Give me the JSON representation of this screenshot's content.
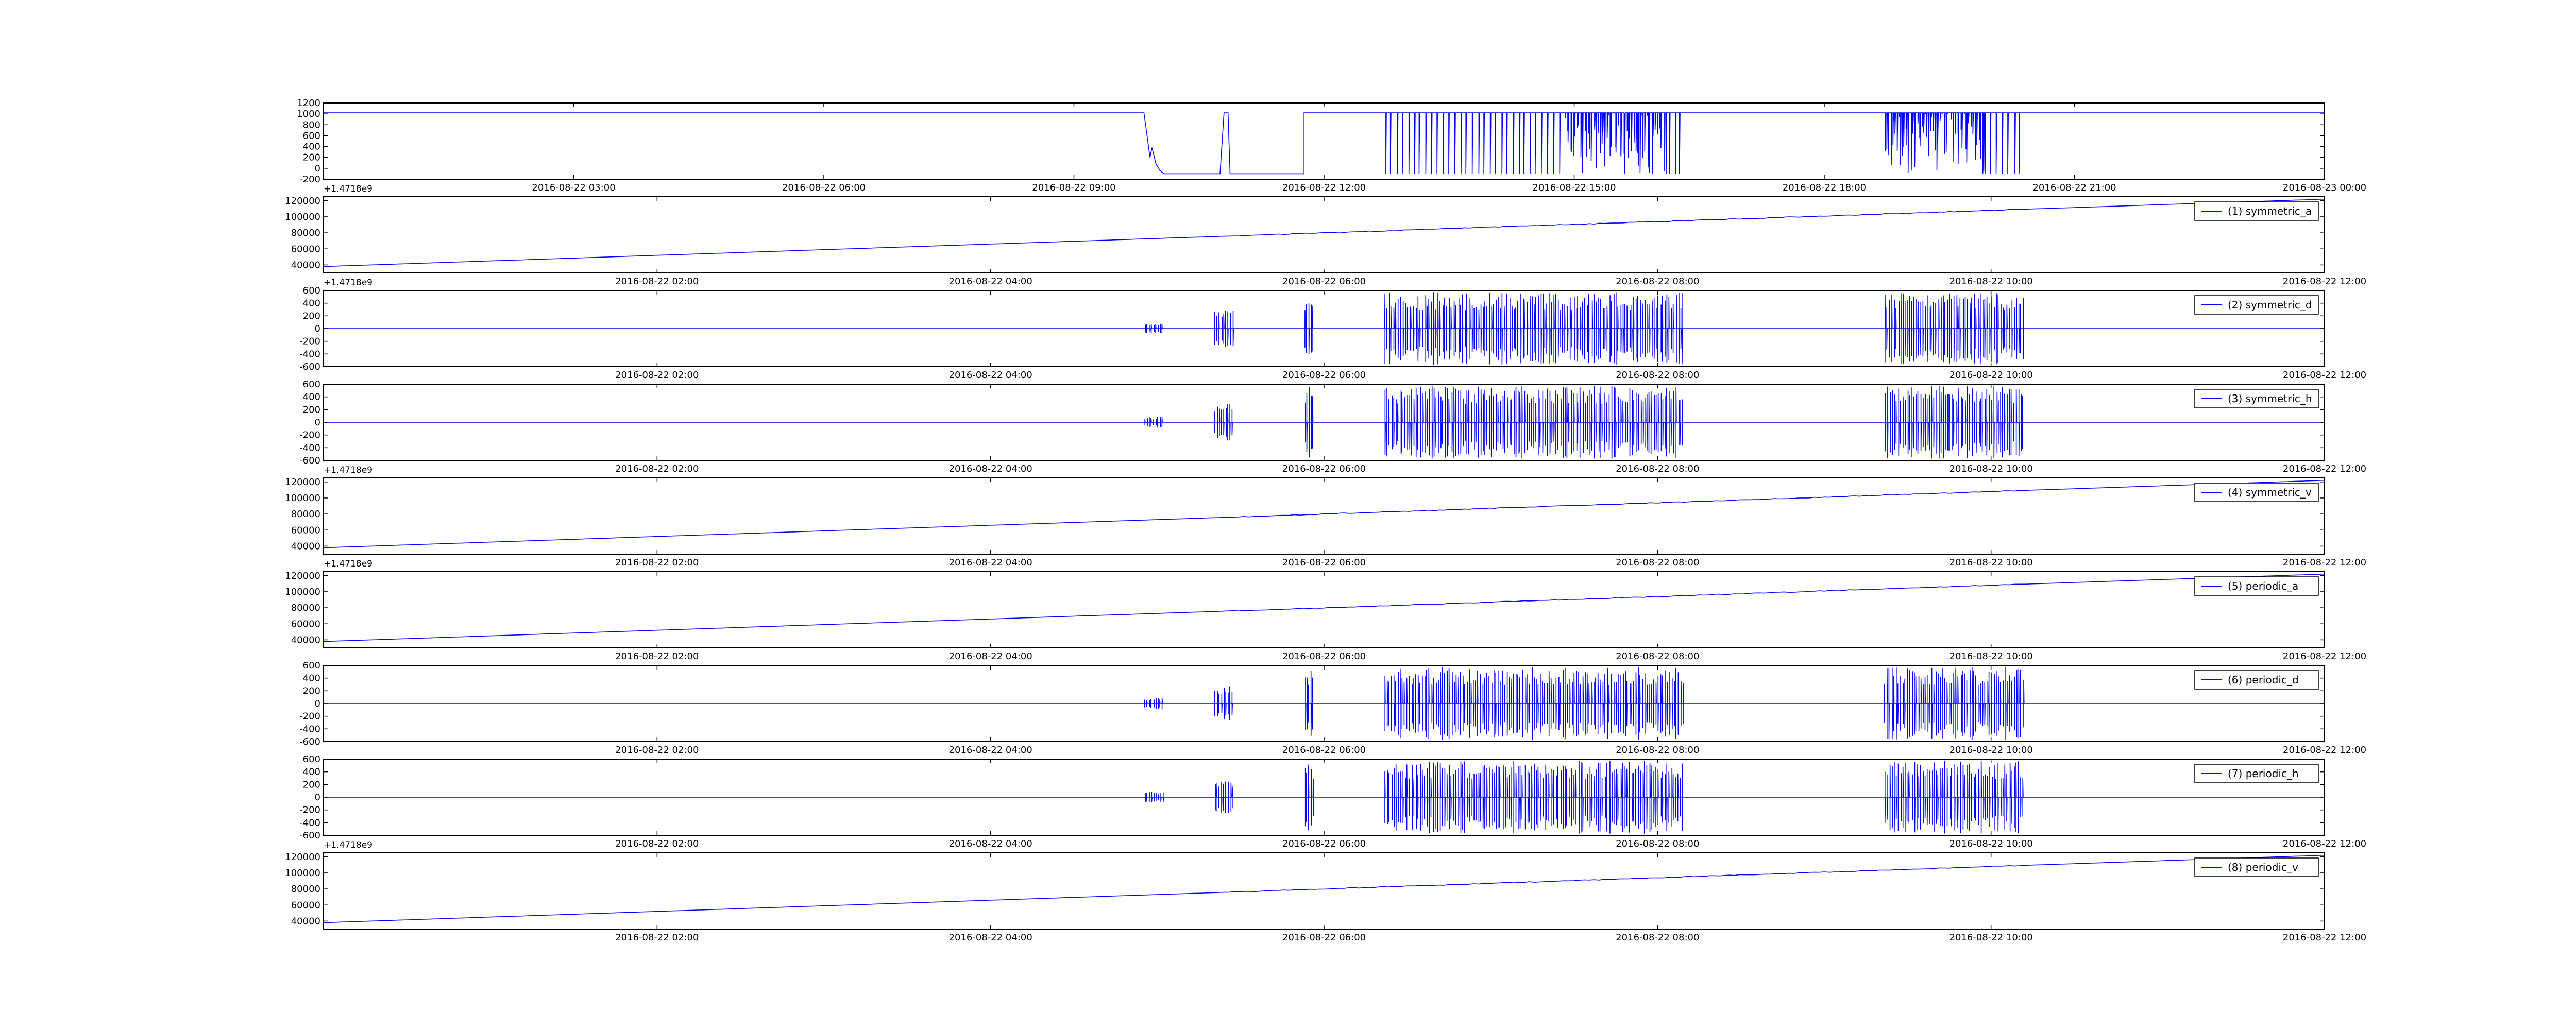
{
  "figure": {
    "background": "#ffffff",
    "line_color": "#0000ff",
    "axis_color": "#000000"
  },
  "chart_data": [
    {
      "type": "line",
      "series_color": "#0000ff",
      "xticks": [
        "2016-08-22 03:00",
        "2016-08-22 06:00",
        "2016-08-22 09:00",
        "2016-08-22 12:00",
        "2016-08-22 15:00",
        "2016-08-22 18:00",
        "2016-08-22 21:00",
        "2016-08-23 00:00"
      ],
      "yticks": [
        1200,
        1000,
        800,
        600,
        400,
        200,
        0,
        -200
      ],
      "ylim": [
        -200,
        1200
      ],
      "offset_label": "+1.4718e9",
      "pattern": "step",
      "baseline": 1020,
      "low": -100,
      "bursts": [
        [
          0.41,
          0.42,
          0.7,
          "dip"
        ],
        [
          0.448,
          0.49,
          1.0,
          "low"
        ],
        [
          0.49,
          0.495,
          1.0,
          "edge"
        ],
        [
          0.53,
          0.62,
          1.0,
          "bursty"
        ],
        [
          0.62,
          0.67,
          1.0,
          "dense"
        ],
        [
          0.67,
          0.68,
          1.0,
          "bursty"
        ],
        [
          0.78,
          0.83,
          1.0,
          "dense"
        ],
        [
          0.83,
          0.85,
          1.0,
          "bursty"
        ]
      ]
    },
    {
      "type": "line",
      "series_color": "#0000ff",
      "legend": "(1) symmetric_a",
      "legend_position": "upper right",
      "xticks": [
        "2016-08-22 02:00",
        "2016-08-22 04:00",
        "2016-08-22 06:00",
        "2016-08-22 08:00",
        "2016-08-22 10:00",
        "2016-08-22 12:00"
      ],
      "yticks": [
        120000,
        100000,
        80000,
        60000,
        40000
      ],
      "ylim": [
        30000,
        125000
      ],
      "offset_label": "+1.4718e9",
      "pattern": "ramp",
      "x_range": [
        0,
        1
      ],
      "y_range": [
        38000,
        122000
      ]
    },
    {
      "type": "line",
      "series_color": "#0000ff",
      "legend": "(2) symmetric_d",
      "legend_position": "upper right",
      "xticks": [
        "2016-08-22 02:00",
        "2016-08-22 04:00",
        "2016-08-22 06:00",
        "2016-08-22 08:00",
        "2016-08-22 10:00",
        "2016-08-22 12:00"
      ],
      "yticks": [
        600,
        400,
        200,
        0,
        -200,
        -400,
        -600
      ],
      "ylim": [
        -600,
        600
      ],
      "offset_label": "",
      "pattern": "spikes",
      "bursts": [
        [
          0.41,
          0.42,
          0.15
        ],
        [
          0.445,
          0.455,
          0.5
        ],
        [
          0.49,
          0.495,
          1.0
        ],
        [
          0.53,
          0.62,
          1.0
        ],
        [
          0.62,
          0.67,
          1.0
        ],
        [
          0.67,
          0.68,
          1.0
        ],
        [
          0.78,
          0.83,
          1.0
        ],
        [
          0.83,
          0.85,
          1.0
        ]
      ]
    },
    {
      "type": "line",
      "series_color": "#0000ff",
      "legend": "(3) symmetric_h",
      "legend_position": "upper right",
      "xticks": [
        "2016-08-22 02:00",
        "2016-08-22 04:00",
        "2016-08-22 06:00",
        "2016-08-22 08:00",
        "2016-08-22 10:00",
        "2016-08-22 12:00"
      ],
      "yticks": [
        600,
        400,
        200,
        0,
        -200,
        -400,
        -600
      ],
      "ylim": [
        -600,
        600
      ],
      "offset_label": "+1.4718e9",
      "pattern": "spikes",
      "bursts": [
        [
          0.41,
          0.42,
          0.15
        ],
        [
          0.445,
          0.455,
          0.5
        ],
        [
          0.49,
          0.495,
          1.0
        ],
        [
          0.53,
          0.62,
          1.0
        ],
        [
          0.62,
          0.67,
          1.0
        ],
        [
          0.67,
          0.68,
          1.0
        ],
        [
          0.78,
          0.83,
          1.0
        ],
        [
          0.83,
          0.85,
          1.0
        ]
      ]
    },
    {
      "type": "line",
      "series_color": "#0000ff",
      "legend": "(4) symmetric_v",
      "legend_position": "upper right",
      "xticks": [
        "2016-08-22 02:00",
        "2016-08-22 04:00",
        "2016-08-22 06:00",
        "2016-08-22 08:00",
        "2016-08-22 10:00",
        "2016-08-22 12:00"
      ],
      "yticks": [
        120000,
        100000,
        80000,
        60000,
        40000
      ],
      "ylim": [
        30000,
        125000
      ],
      "offset_label": "+1.4718e9",
      "pattern": "ramp",
      "x_range": [
        0,
        1
      ],
      "y_range": [
        38000,
        122000
      ]
    },
    {
      "type": "line",
      "series_color": "#0000ff",
      "legend": "(5) periodic_a",
      "legend_position": "upper right",
      "xticks": [
        "2016-08-22 02:00",
        "2016-08-22 04:00",
        "2016-08-22 06:00",
        "2016-08-22 08:00",
        "2016-08-22 10:00",
        "2016-08-22 12:00"
      ],
      "yticks": [
        120000,
        100000,
        80000,
        60000,
        40000
      ],
      "ylim": [
        30000,
        125000
      ],
      "offset_label": "",
      "pattern": "ramp",
      "x_range": [
        0,
        1
      ],
      "y_range": [
        38000,
        122000
      ]
    },
    {
      "type": "line",
      "series_color": "#0000ff",
      "legend": "(6) periodic_d",
      "legend_position": "upper right",
      "xticks": [
        "2016-08-22 02:00",
        "2016-08-22 04:00",
        "2016-08-22 06:00",
        "2016-08-22 08:00",
        "2016-08-22 10:00",
        "2016-08-22 12:00"
      ],
      "yticks": [
        600,
        400,
        200,
        0,
        -200,
        -400,
        -600
      ],
      "ylim": [
        -600,
        600
      ],
      "offset_label": "",
      "pattern": "spikes",
      "bursts": [
        [
          0.41,
          0.42,
          0.15
        ],
        [
          0.445,
          0.455,
          0.5
        ],
        [
          0.49,
          0.495,
          1.0
        ],
        [
          0.53,
          0.62,
          1.0
        ],
        [
          0.62,
          0.67,
          1.0
        ],
        [
          0.67,
          0.68,
          1.0
        ],
        [
          0.78,
          0.83,
          1.0
        ],
        [
          0.83,
          0.85,
          1.0
        ]
      ]
    },
    {
      "type": "line",
      "series_color": "#0000ff",
      "legend": "(7) periodic_h",
      "legend_position": "upper right",
      "xticks": [
        "2016-08-22 02:00",
        "2016-08-22 04:00",
        "2016-08-22 06:00",
        "2016-08-22 08:00",
        "2016-08-22 10:00",
        "2016-08-22 12:00"
      ],
      "yticks": [
        600,
        400,
        200,
        0,
        -200,
        -400,
        -600
      ],
      "ylim": [
        -600,
        600
      ],
      "offset_label": "+1.4718e9",
      "pattern": "spikes",
      "bursts": [
        [
          0.41,
          0.42,
          0.15
        ],
        [
          0.445,
          0.455,
          0.5
        ],
        [
          0.49,
          0.495,
          1.0
        ],
        [
          0.53,
          0.62,
          1.0
        ],
        [
          0.62,
          0.67,
          1.0
        ],
        [
          0.67,
          0.68,
          1.0
        ],
        [
          0.78,
          0.83,
          1.0
        ],
        [
          0.83,
          0.85,
          1.0
        ]
      ]
    },
    {
      "type": "line",
      "series_color": "#0000ff",
      "legend": "(8) periodic_v",
      "legend_position": "upper right",
      "xticks": [
        "2016-08-22 02:00",
        "2016-08-22 04:00",
        "2016-08-22 06:00",
        "2016-08-22 08:00",
        "2016-08-22 10:00",
        "2016-08-22 12:00"
      ],
      "yticks": [
        120000,
        100000,
        80000,
        60000,
        40000
      ],
      "ylim": [
        30000,
        125000
      ],
      "offset_label": "",
      "pattern": "ramp",
      "x_range": [
        0,
        1
      ],
      "y_range": [
        38000,
        122000
      ]
    }
  ]
}
